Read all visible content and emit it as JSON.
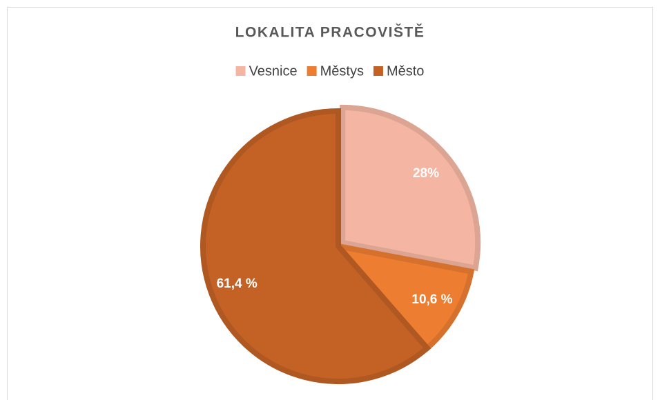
{
  "chart_data": {
    "type": "pie",
    "title": "LOKALITA PRACOVIŠTĚ",
    "categories": [
      "Vesnice",
      "Městys",
      "Město"
    ],
    "values": [
      28,
      10.6,
      61.4
    ],
    "value_labels": [
      "28%",
      "10,6 %",
      "61,4 %"
    ],
    "colors": [
      "#f4b6a2",
      "#ed7d31",
      "#c46226"
    ],
    "legend": "top"
  }
}
